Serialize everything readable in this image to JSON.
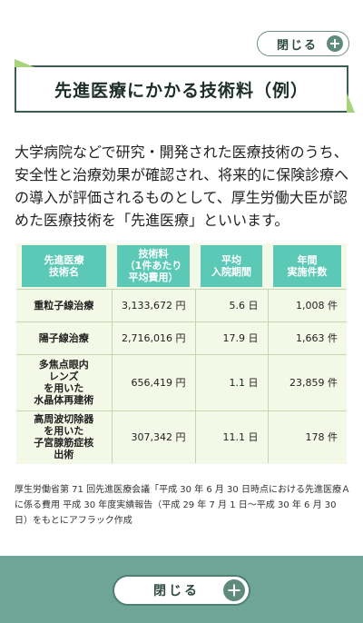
{
  "close_top_label": "閉じる",
  "title": "先進医療にかかる技術料（例）",
  "description": "大学病院などで研究・開発された医療技術のうち、安全性と治療効果が確認され、将来的に保険診療への導入が評価されるものとして、厚生労働大臣が認めた医療技術を「先進医療」といいます。",
  "table": {
    "headers": [
      "先進医療\n技術名",
      "技術料\n（1件あたり\n平均費用）",
      "平均\n入院期間",
      "年間\n実施件数"
    ],
    "rows": [
      {
        "name": "重粒子線治療",
        "cost": "3,133,672 円",
        "stay": "5.6 日",
        "count": "1,008 件"
      },
      {
        "name": "陽子線治療",
        "cost": "2,716,016 円",
        "stay": "17.9 日",
        "count": "1,663 件"
      },
      {
        "name": "多焦点眼内\nレンズ\nを用いた\n水晶体再建術",
        "cost": "656,419 円",
        "stay": "1.1 日",
        "count": "23,859 件"
      },
      {
        "name": "高周波切除器\nを用いた\n子宮腺筋症核\n出術",
        "cost": "307,342 円",
        "stay": "11.1 日",
        "count": "178 件"
      }
    ]
  },
  "source": "厚生労働省第 71 回先進医療会議「平成 30 年 6 月 30 日時点における先進医療Ａに係る費用 平成 30 年度実績報告（平成 29 年 7 月 1 日〜平成 30 年 6 月 30 日）をもとにアフラック作成",
  "close_bottom_label": "閉じる",
  "colors": {
    "accent": "#5cc9b7",
    "footer": "#6fa597",
    "table_bg": "#f4f8e6",
    "corner": "#a7d37a"
  }
}
